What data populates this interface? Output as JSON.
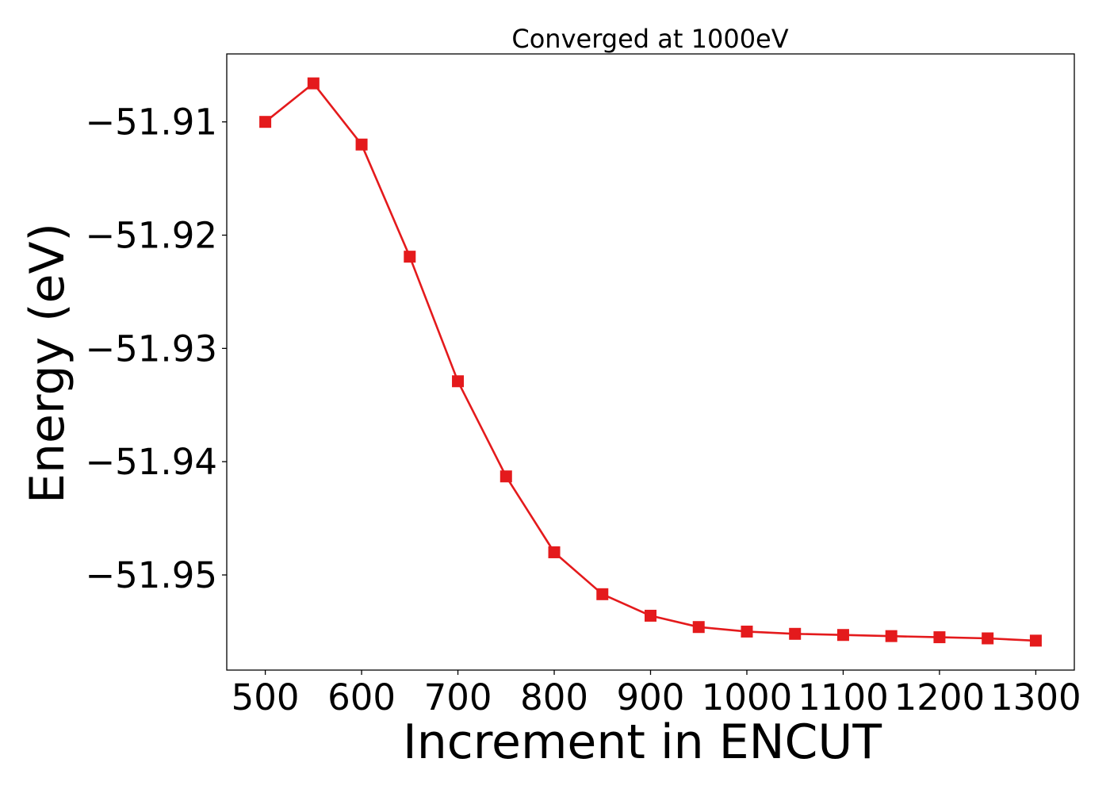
{
  "chart_data": {
    "type": "line",
    "title": "Converged at 1000eV",
    "xlabel": "Increment in ENCUT",
    "ylabel": "Energy (eV)",
    "x": [
      500,
      550,
      600,
      650,
      700,
      750,
      800,
      850,
      900,
      950,
      1000,
      1050,
      1100,
      1150,
      1200,
      1250,
      1300
    ],
    "series": [
      {
        "values": [
          -51.91,
          -51.9066,
          -51.912,
          -51.9219,
          -51.9329,
          -51.9413,
          -51.948,
          -51.9517,
          -51.9536,
          -51.9546,
          -51.955,
          -51.9552,
          -51.9553,
          -51.9554,
          -51.9555,
          -51.9556,
          -51.9558
        ],
        "color": "#e41a1c",
        "marker": "square"
      }
    ],
    "xlim": [
      460,
      1340
    ],
    "ylim": [
      -51.9584,
      -51.904
    ],
    "xticks": [
      500,
      600,
      700,
      800,
      900,
      1000,
      1100,
      1200,
      1300
    ],
    "xtick_labels": [
      "500",
      "600",
      "700",
      "800",
      "900",
      "1000",
      "1100",
      "1200",
      "1300"
    ],
    "yticks": [
      -51.91,
      -51.92,
      -51.93,
      -51.94,
      -51.95
    ],
    "ytick_labels": [
      "−51.91",
      "−51.92",
      "−51.93",
      "−51.94",
      "−51.95"
    ],
    "grid": false,
    "legend": false
  }
}
